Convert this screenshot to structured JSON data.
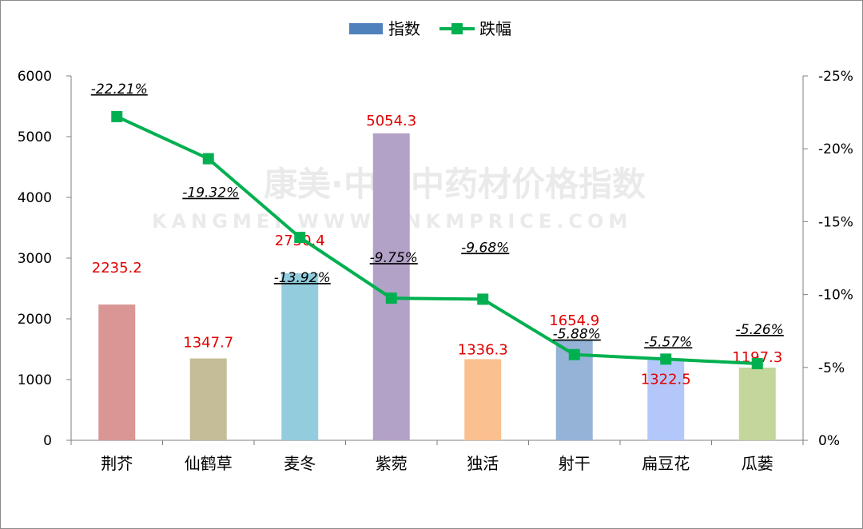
{
  "chart_data": {
    "type": "bar",
    "categories": [
      "荆芥",
      "仙鹤草",
      "麦冬",
      "紫菀",
      "独活",
      "射干",
      "扁豆花",
      "瓜蒌"
    ],
    "series": [
      {
        "name": "指数",
        "type": "bar",
        "axis": "left",
        "values": [
          2235.2,
          1347.7,
          2750.4,
          5054.3,
          1336.3,
          1654.9,
          1322.5,
          1197.3
        ],
        "labels": [
          "2235.2",
          "1347.7",
          "2750.4",
          "5054.3",
          "1336.3",
          "1654.9",
          "1322.5",
          "1197.3"
        ],
        "label_color": "#e00000",
        "colors": [
          "#d99694",
          "#c4bd97",
          "#93cddd",
          "#b3a2c7",
          "#fac090",
          "#95b3d7",
          "#b4c7fb",
          "#c3d69b"
        ]
      },
      {
        "name": "跌幅",
        "type": "line",
        "axis": "right",
        "values": [
          -22.21,
          -19.32,
          -13.92,
          -9.75,
          -9.68,
          -5.88,
          -5.57,
          -5.26
        ],
        "labels": [
          "-22.21%",
          "-19.32%",
          "-13.92%",
          "-9.75%",
          "-9.68%",
          "-5.88%",
          "-5.57%",
          "-5.26%"
        ],
        "color": "#00b050"
      }
    ],
    "left_axis": {
      "min": 0,
      "max": 6000,
      "step": 1000,
      "ticks": [
        "0",
        "1000",
        "2000",
        "3000",
        "4000",
        "5000",
        "6000"
      ]
    },
    "right_axis": {
      "min": 0,
      "max": -25,
      "step": -5,
      "reversed": true,
      "ticks": [
        "0%",
        "-5%",
        "-10%",
        "-15%",
        "-20%",
        "-25%"
      ]
    },
    "legend": {
      "position": "top",
      "items": [
        "指数",
        "跌幅"
      ]
    },
    "grid": false
  },
  "watermark": {
    "line1": "康美·中国中药材价格指数",
    "line2": "KANGMEI WWW.CNKMPRICE.COM"
  }
}
